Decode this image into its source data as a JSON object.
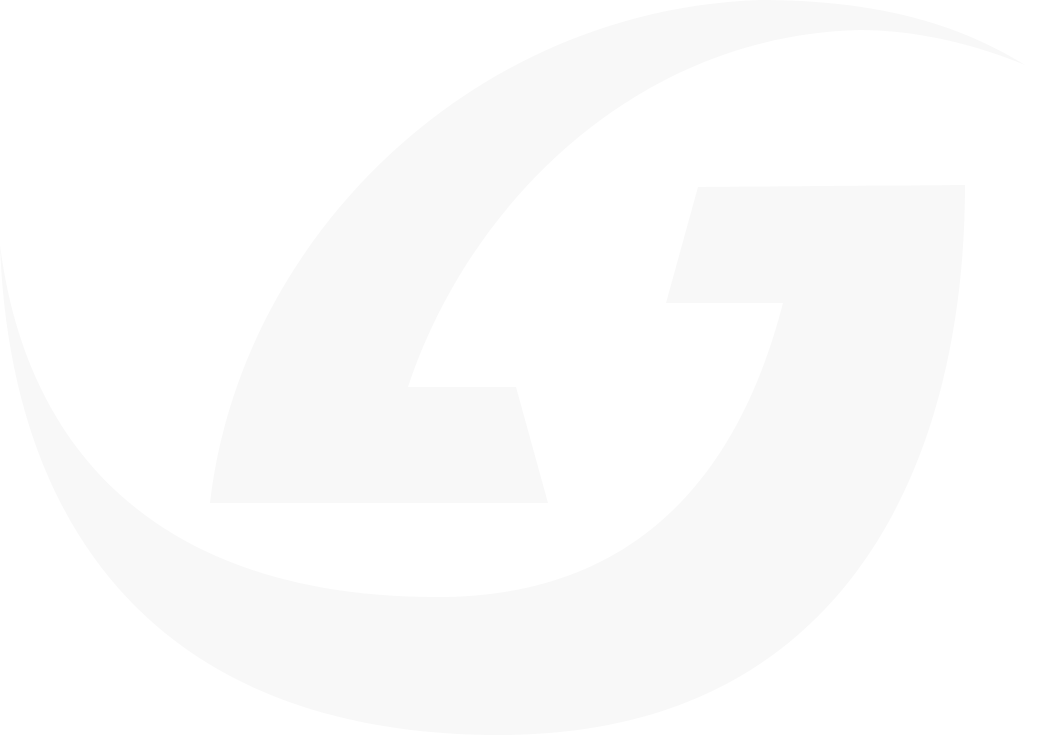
{
  "watermark": {
    "shape": "stylized-g-swoosh-logo",
    "fill_color": "#f8f8f8",
    "background_color": "#ffffff"
  }
}
